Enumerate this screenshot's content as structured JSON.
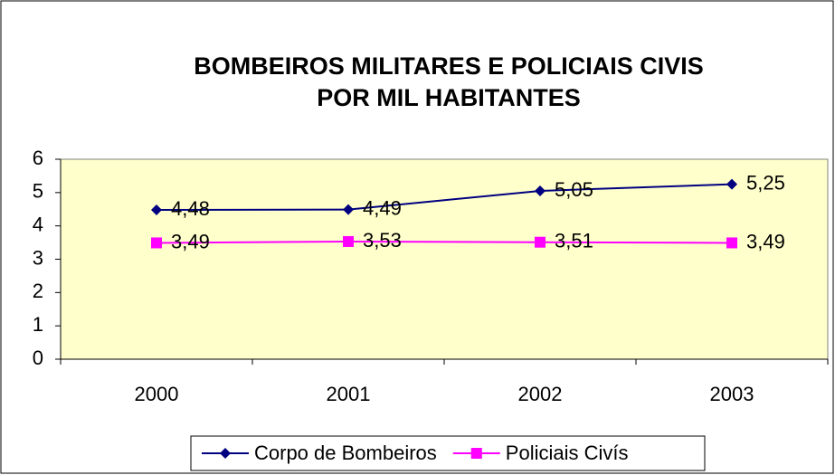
{
  "chart_data": {
    "type": "line",
    "title": [
      "BOMBEIROS MILITARES E POLICIAIS CIVIS",
      "POR MIL HABITANTES"
    ],
    "categories": [
      "2000",
      "2001",
      "2002",
      "2003"
    ],
    "series": [
      {
        "name": "Corpo de Bombeiros",
        "color": "#000080",
        "marker": "diamond",
        "values": [
          4.48,
          4.49,
          5.05,
          5.25
        ],
        "value_labels": [
          "4,48",
          "4,49",
          "5,05",
          "5,25"
        ]
      },
      {
        "name": "Policiais Civís",
        "color": "#FF00FF",
        "marker": "square",
        "values": [
          3.49,
          3.53,
          3.51,
          3.49
        ],
        "value_labels": [
          "3,49",
          "3,53",
          "3,51",
          "3,49"
        ]
      }
    ],
    "ylim": [
      0,
      6
    ],
    "yticks": [
      0,
      1,
      2,
      3,
      4,
      5,
      6
    ],
    "grid": false,
    "legend": "bottom",
    "plot_background": "#FFFFCC"
  }
}
